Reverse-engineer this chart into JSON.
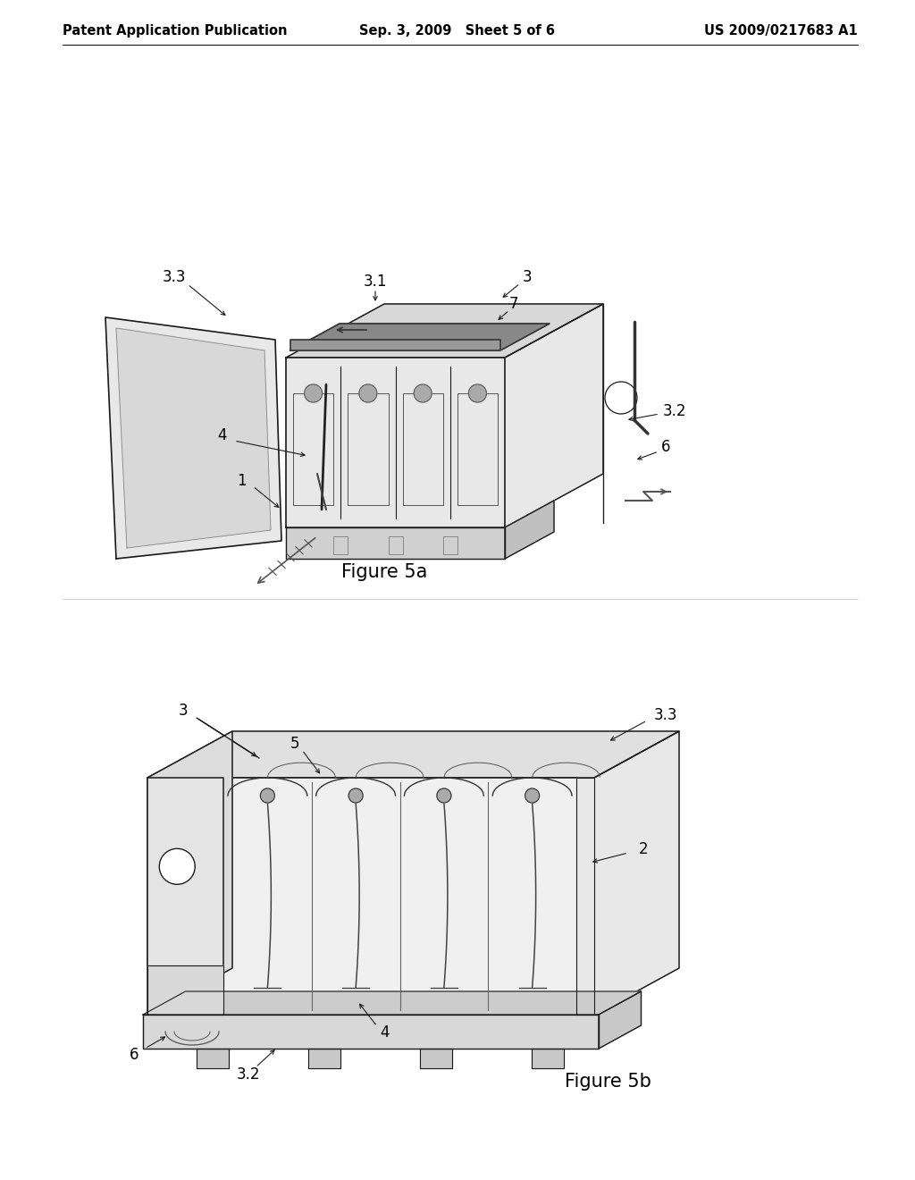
{
  "background_color": "#ffffff",
  "header": {
    "left_text": "Patent Application Publication",
    "center_text": "Sep. 3, 2009   Sheet 5 of 6",
    "right_text": "US 2009/0217683 A1",
    "fontsize": 10.5
  },
  "fig5a_caption": "Figure 5a",
  "fig5b_caption": "Figure 5b",
  "line_color": "#1a1a1a",
  "fill_light": "#f0f0f0",
  "fill_mid": "#e0e0e0",
  "fill_dark": "#c8c8c8"
}
